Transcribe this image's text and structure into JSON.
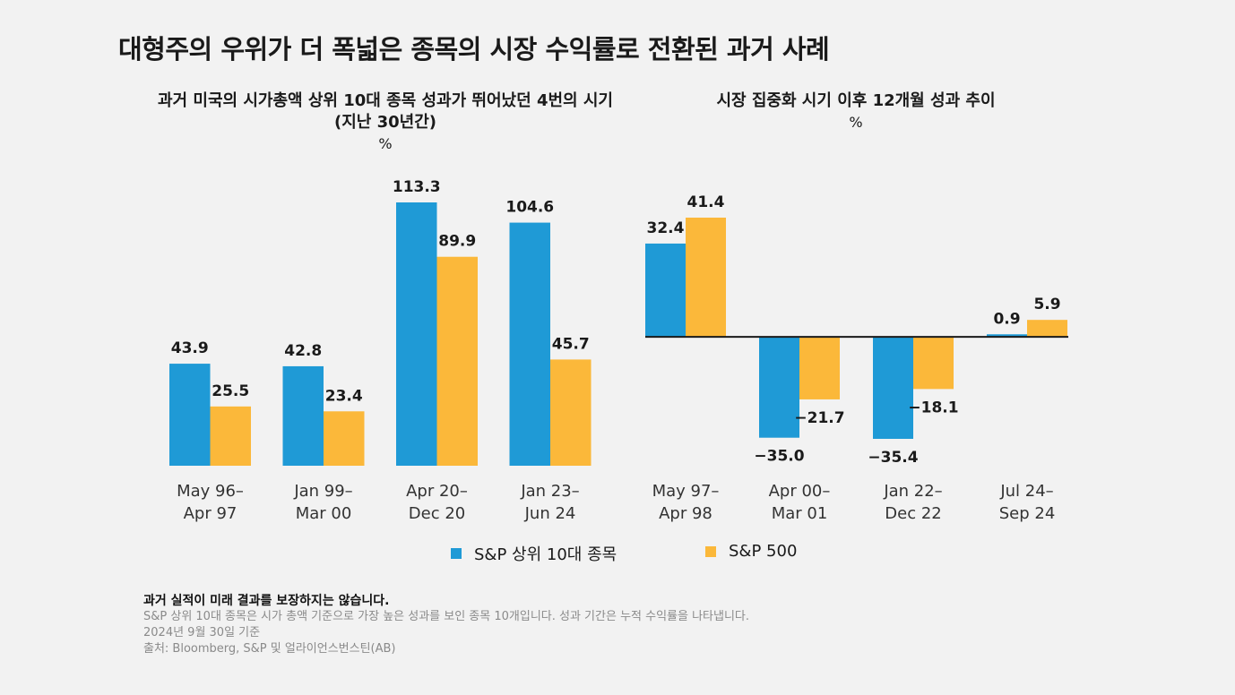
{
  "title": "대형주의 우위가 더 폭넓은 종목의 시장 수익률로 전환된 과거 사례",
  "colors": {
    "top10": "#1f9ad6",
    "sp500": "#fbb83a",
    "axis": "#1a1a1a"
  },
  "legend": [
    {
      "label": "S&P 상위 10대 종목",
      "color": "#1f9ad6"
    },
    {
      "label": "S&P 500",
      "color": "#fbb83a"
    }
  ],
  "footnotes": {
    "disclaimer": "과거 실적이 미래 결과를 보장하지는 않습니다.",
    "note": "S&P 상위 10대 종목은 시가 총액 기준으로 가장 높은 성과를 보인 종목 10개입니다. 성과 기간은 누적 수익률을 나타냅니다.",
    "date": "2024년 9월 30일 기준",
    "source": "출처: Bloomberg, S&P 및 얼라이언스번스틴(AB)"
  },
  "chart_data": [
    {
      "type": "bar",
      "title": "과거 미국의 시가총액 상위 10대 종목 성과가 뛰어났던 4번의 시기",
      "subtitle": "(지난 30년간)",
      "ylabel": "%",
      "categories": [
        [
          "May 96–",
          "Apr 97"
        ],
        [
          "Jan 99–",
          "Mar 00"
        ],
        [
          "Apr 20–",
          "Dec 20"
        ],
        [
          "Jan 23–",
          "Jun 24"
        ]
      ],
      "series": [
        {
          "name": "S&P 상위 10대 종목",
          "values": [
            43.9,
            42.8,
            113.3,
            104.6
          ],
          "labels": [
            "43.9",
            "42.8",
            "113.3",
            "104.6"
          ]
        },
        {
          "name": "S&P 500",
          "values": [
            25.5,
            23.4,
            89.9,
            45.7
          ],
          "labels": [
            "25.5",
            "23.4",
            "89.9",
            "45.7"
          ]
        }
      ],
      "ylim": [
        0,
        113.3
      ],
      "grid": false,
      "legend": "bottom"
    },
    {
      "type": "bar",
      "title": "시장 집중화 시기 이후 12개월 성과 추이",
      "ylabel": "%",
      "categories": [
        [
          "May 97–",
          "Apr 98"
        ],
        [
          "Apr 00–",
          "Mar 01"
        ],
        [
          "Jan 22–",
          "Dec 22"
        ],
        [
          "Jul 24–",
          "Sep 24"
        ]
      ],
      "series": [
        {
          "name": "S&P 상위 10대 종목",
          "values": [
            32.4,
            -35.0,
            -35.4,
            0.9
          ],
          "labels": [
            "32.4",
            "−35.0",
            "−35.4",
            "0.9"
          ]
        },
        {
          "name": "S&P 500",
          "values": [
            41.4,
            -21.7,
            -18.1,
            5.9
          ],
          "labels": [
            "41.4",
            "−21.7",
            "−18.1",
            "5.9"
          ]
        }
      ],
      "ylim": [
        -35.4,
        41.4
      ],
      "grid": false,
      "legend": "bottom"
    }
  ]
}
